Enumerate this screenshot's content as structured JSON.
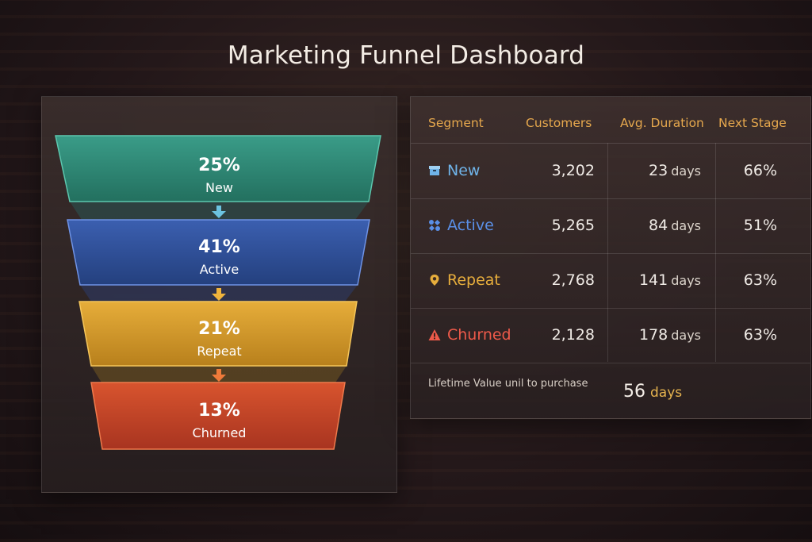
{
  "title": "Marketing Funnel Dashboard",
  "funnel": [
    {
      "pct": "25%",
      "label": "New",
      "color": "#2f8a7a"
    },
    {
      "pct": "41%",
      "label": "Active",
      "color": "#2f4f9a"
    },
    {
      "pct": "21%",
      "label": "Repeat",
      "color": "#d99a2a"
    },
    {
      "pct": "13%",
      "label": "Churned",
      "color": "#c8452a"
    }
  ],
  "table": {
    "headers": {
      "segment": "Segment",
      "customers": "Customers",
      "duration": "Avg. Duration",
      "next": "Next Stage"
    },
    "rows": [
      {
        "segment": "New",
        "icon": "box-icon",
        "color": "#6fb3e8",
        "customers": "3,202",
        "duration": "23",
        "unit": "days",
        "next": "66%"
      },
      {
        "segment": "Active",
        "icon": "puzzle-icon",
        "color": "#5a8fe6",
        "customers": "5,265",
        "duration": "84",
        "unit": "days",
        "next": "51%"
      },
      {
        "segment": "Repeat",
        "icon": "location-pin-icon",
        "color": "#e6ad3c",
        "customers": "2,768",
        "duration": "141",
        "unit": "days",
        "next": "63%"
      },
      {
        "segment": "Churned",
        "icon": "warning-icon",
        "color": "#ee5a4a",
        "customers": "2,128",
        "duration": "178",
        "unit": "days",
        "next": "63%"
      }
    ],
    "footer": {
      "label": "Lifetime Value unil to purchase",
      "value": "56",
      "unit": "days"
    }
  }
}
